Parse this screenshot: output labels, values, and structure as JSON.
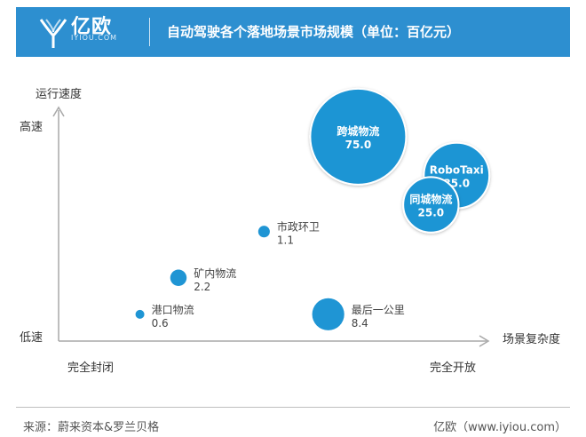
{
  "header": {
    "logo_text": "亿欧",
    "logo_sub": "IYIOU.COM",
    "title": "自动驾驶各个落地场景市场规模（单位：百亿元）"
  },
  "footer": {
    "source": "来源：蔚来资本&罗兰贝格",
    "brand": "亿欧（www.iyiou.com）"
  },
  "chart_data": {
    "type": "bubble",
    "title": "自动驾驶各个落地场景市场规模（单位：百亿元）",
    "xlabel": "场景复杂度",
    "ylabel": "运行速度",
    "x_low_label": "完全封闭",
    "x_high_label": "完全开放",
    "y_low_label": "低速",
    "y_high_label": "高速",
    "xlim": [
      0,
      100
    ],
    "ylim": [
      0,
      100
    ],
    "points": [
      {
        "name": "跨城物流",
        "size_label": "75.0",
        "size": 75.0,
        "x": 70,
        "y": 84,
        "label_inside": true
      },
      {
        "name": "RoboTaxi",
        "size_label": "35.0",
        "size": 35.0,
        "x": 93,
        "y": 68,
        "label_inside": true
      },
      {
        "name": "同城物流",
        "size_label": "25.0",
        "size": 25.0,
        "x": 87,
        "y": 56,
        "label_inside": true
      },
      {
        "name": "市政环卫",
        "size_label": "1.1",
        "size": 1.1,
        "x": 48,
        "y": 45,
        "label_inside": false
      },
      {
        "name": "矿内物流",
        "size_label": "2.2",
        "size": 2.2,
        "x": 28,
        "y": 26,
        "label_inside": false
      },
      {
        "name": "港口物流",
        "size_label": "0.6",
        "size": 0.6,
        "x": 19,
        "y": 11,
        "label_inside": false
      },
      {
        "name": "最后一公里",
        "size_label": "8.4",
        "size": 8.4,
        "x": 63,
        "y": 11,
        "label_inside": false
      }
    ]
  },
  "colors": {
    "header": "#2d8fd0",
    "bubble": "#1f95d4",
    "bubble_stroke": "#ffffff",
    "axis": "#a8a8a8"
  }
}
